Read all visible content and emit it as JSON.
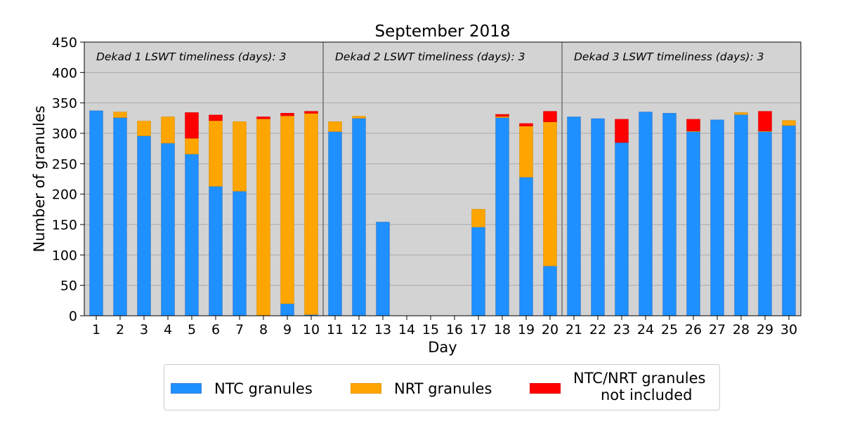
{
  "chart_data": {
    "type": "bar",
    "stacked": true,
    "title": "September 2018",
    "xlabel": "Day",
    "ylabel": "Number of granules",
    "ylim": [
      0,
      450
    ],
    "yticks": [
      0,
      50,
      100,
      150,
      200,
      250,
      300,
      350,
      400,
      450
    ],
    "grid": true,
    "categories": [
      "1",
      "2",
      "3",
      "4",
      "5",
      "6",
      "7",
      "8",
      "9",
      "10",
      "11",
      "12",
      "13",
      "14",
      "15",
      "16",
      "17",
      "18",
      "19",
      "20",
      "21",
      "22",
      "23",
      "24",
      "25",
      "26",
      "27",
      "28",
      "29",
      "30"
    ],
    "series": [
      {
        "name": "NTC granules",
        "color": "#1e90ff",
        "values": [
          337,
          326,
          296,
          284,
          266,
          213,
          205,
          1,
          20,
          2,
          303,
          325,
          154,
          0,
          0,
          0,
          146,
          326,
          228,
          82,
          327,
          324,
          285,
          335,
          333,
          303,
          322,
          331,
          303,
          313
        ]
      },
      {
        "name": "NRT granules",
        "color": "#ffa500",
        "values": [
          0,
          9,
          24,
          43,
          26,
          108,
          114,
          323,
          309,
          331,
          16,
          3,
          0,
          0,
          0,
          0,
          29,
          2,
          84,
          237,
          0,
          0,
          0,
          0,
          0,
          1,
          0,
          3,
          1,
          8
        ]
      },
      {
        "name": "NTC/NRT granules\n   not included",
        "color": "#ff0000",
        "values": [
          0,
          0,
          0,
          0,
          42,
          9,
          0,
          3,
          4,
          3,
          0,
          0,
          0,
          0,
          0,
          0,
          0,
          3,
          4,
          17,
          0,
          0,
          38,
          0,
          0,
          19,
          0,
          0,
          32,
          0
        ]
      }
    ],
    "dividers_after": [
      "10",
      "20"
    ],
    "annotations": [
      "Dekad 1 LSWT timeliness (days): 3",
      "Dekad 2 LSWT timeliness (days): 3",
      "Dekad 3 LSWT timeliness (days): 3"
    ],
    "legend_position": "bottom"
  }
}
